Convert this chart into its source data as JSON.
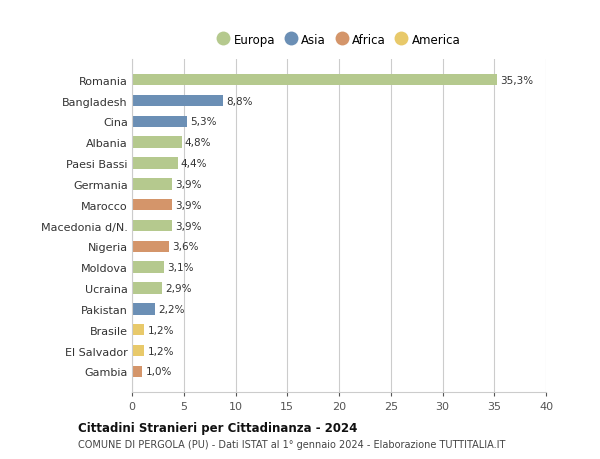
{
  "countries": [
    "Romania",
    "Bangladesh",
    "Cina",
    "Albania",
    "Paesi Bassi",
    "Germania",
    "Marocco",
    "Macedonia d/N.",
    "Nigeria",
    "Moldova",
    "Ucraina",
    "Pakistan",
    "Brasile",
    "El Salvador",
    "Gambia"
  ],
  "values": [
    35.3,
    8.8,
    5.3,
    4.8,
    4.4,
    3.9,
    3.9,
    3.9,
    3.6,
    3.1,
    2.9,
    2.2,
    1.2,
    1.2,
    1.0
  ],
  "labels": [
    "35,3%",
    "8,8%",
    "5,3%",
    "4,8%",
    "4,4%",
    "3,9%",
    "3,9%",
    "3,9%",
    "3,6%",
    "3,1%",
    "2,9%",
    "2,2%",
    "1,2%",
    "1,2%",
    "1,0%"
  ],
  "continents": [
    "Europa",
    "Asia",
    "Asia",
    "Europa",
    "Europa",
    "Europa",
    "Africa",
    "Europa",
    "Africa",
    "Europa",
    "Europa",
    "Asia",
    "America",
    "America",
    "Africa"
  ],
  "colors": {
    "Europa": "#b5c98e",
    "Asia": "#6b8fb5",
    "Africa": "#d4956a",
    "America": "#e8c96a"
  },
  "legend_order": [
    "Europa",
    "Asia",
    "Africa",
    "America"
  ],
  "title": "Cittadini Stranieri per Cittadinanza - 2024",
  "subtitle": "COMUNE DI PERGOLA (PU) - Dati ISTAT al 1° gennaio 2024 - Elaborazione TUTTITALIA.IT",
  "xlim": [
    0,
    40
  ],
  "xticks": [
    0,
    5,
    10,
    15,
    20,
    25,
    30,
    35,
    40
  ],
  "bg_color": "#ffffff",
  "grid_color": "#cccccc"
}
